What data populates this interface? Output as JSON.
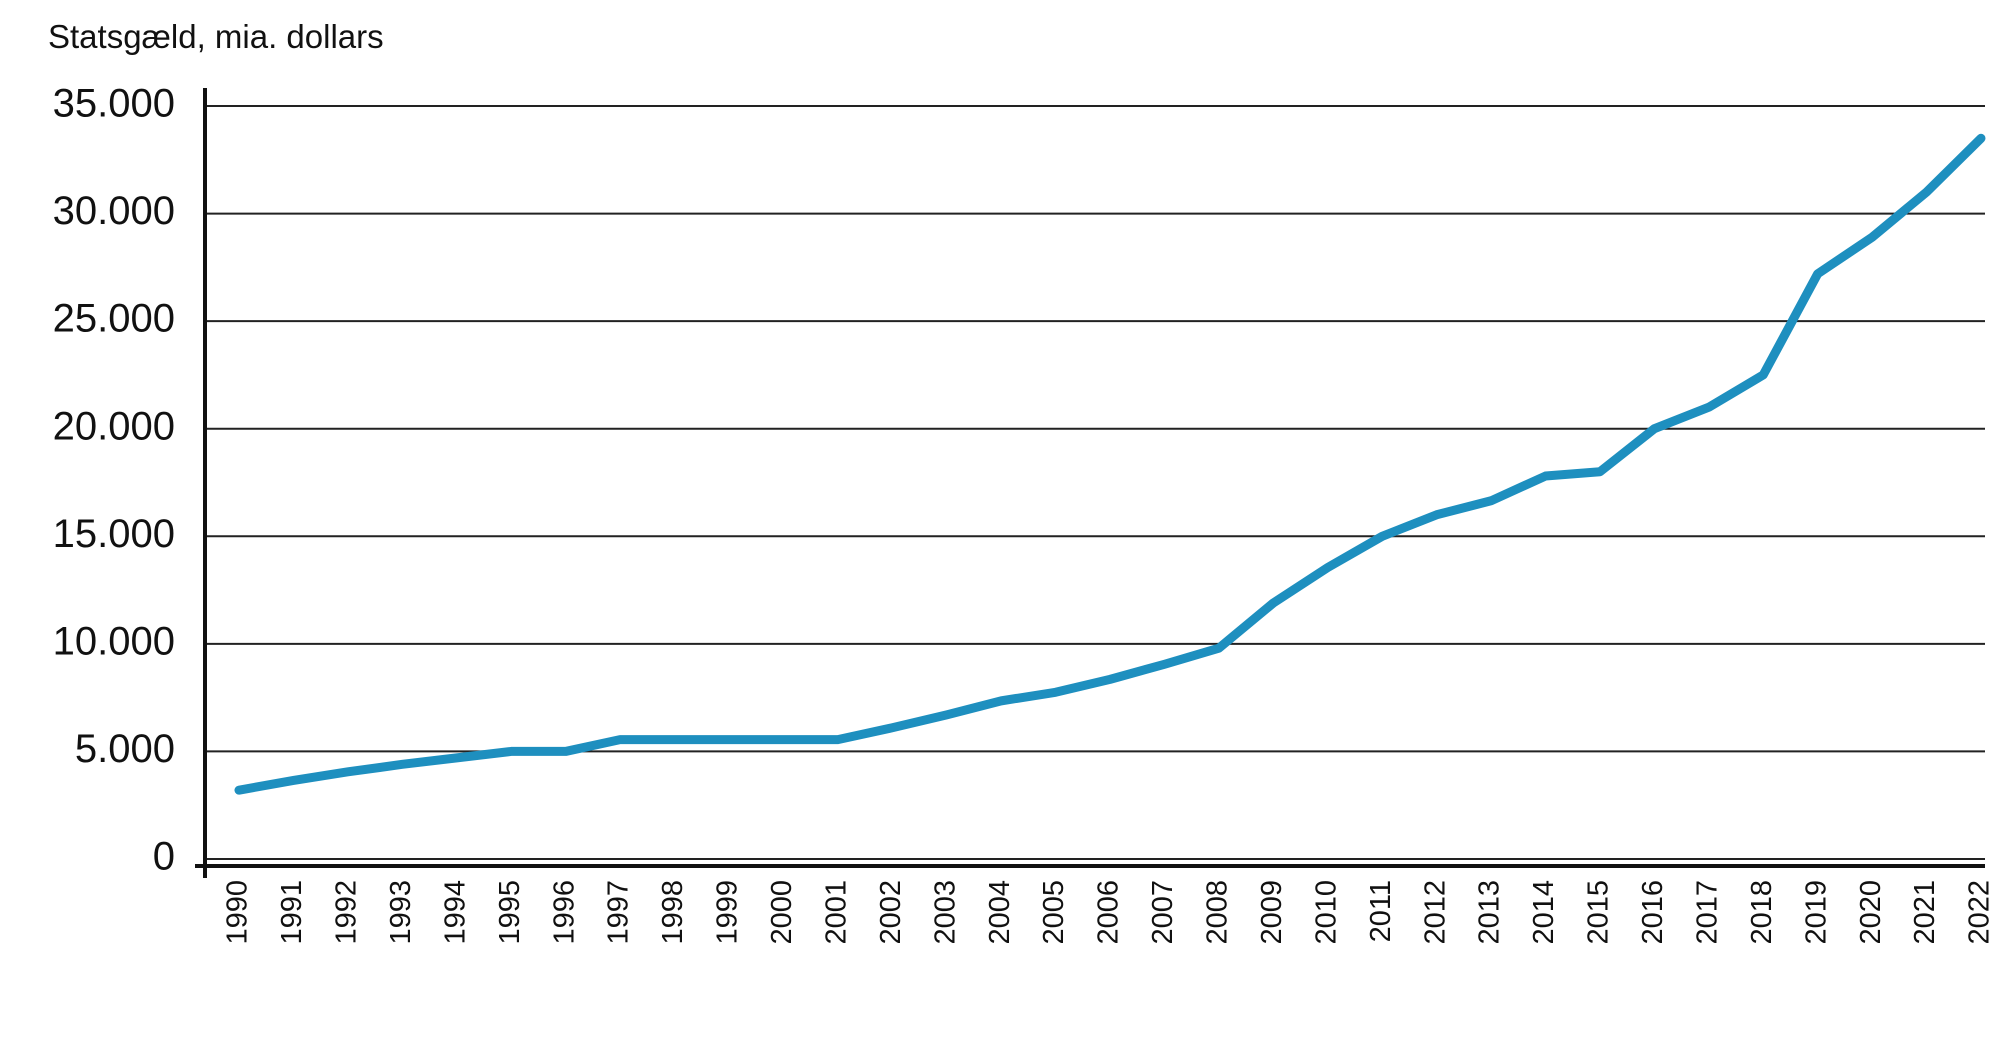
{
  "chart_data": {
    "type": "line",
    "title": "Statsgæld, mia. dollars",
    "categories": [
      "1990",
      "1991",
      "1992",
      "1993",
      "1994",
      "1995",
      "1996",
      "1997",
      "1998",
      "1999",
      "2000",
      "2001",
      "2002",
      "2003",
      "2004",
      "2005",
      "2006",
      "2007",
      "2008",
      "2009",
      "2010",
      "2011",
      "2012",
      "2013",
      "2014",
      "2015",
      "2016",
      "2017",
      "2018",
      "2019",
      "2020",
      "2021",
      "2022"
    ],
    "series": [
      {
        "color": "#1e8fbf",
        "values": [
          3200,
          3650,
          4050,
          4400,
          4700,
          5000,
          5000,
          5550,
          5550,
          5550,
          5550,
          5550,
          6100,
          6700,
          7350,
          7750,
          8350,
          9050,
          9800,
          11900,
          13550,
          15000,
          16000,
          16650,
          17800,
          18000,
          20000,
          21000,
          22500,
          27200,
          28900,
          31000,
          33500
        ]
      }
    ],
    "ylim": [
      0,
      35000
    ],
    "yticks": [
      0,
      {
        "value": 5000,
        "label": "5.000"
      },
      {
        "value": 10000,
        "label": "10.000"
      },
      {
        "value": 15000,
        "label": "15.000"
      },
      {
        "value": 20000,
        "label": "20.000"
      },
      {
        "value": 25000,
        "label": "25.000"
      },
      {
        "value": 30000,
        "label": "30.000"
      },
      {
        "value": 35000,
        "label": "35.000"
      }
    ],
    "grid": true
  }
}
